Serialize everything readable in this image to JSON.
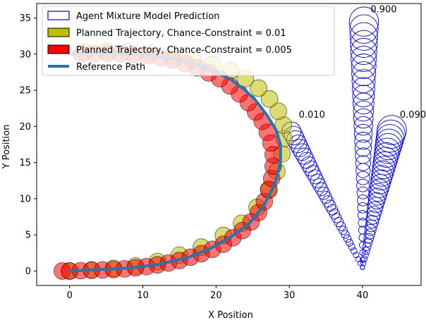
{
  "chart_data": {
    "type": "scatter",
    "title": "",
    "xlabel": "X Position",
    "ylabel": "Y Position",
    "xlim": [
      -4.5,
      48
    ],
    "ylim": [
      -2,
      37
    ],
    "xticks": [
      0,
      10,
      20,
      30,
      40
    ],
    "yticks": [
      0,
      5,
      10,
      15,
      20,
      25,
      30,
      35
    ],
    "legend": {
      "placement": "top-left",
      "entries": [
        {
          "label": "Agent Mixture Model Prediction",
          "marker": "open-rect",
          "color": "#0000ff"
        },
        {
          "label": "Planned Trajectory, Chance-Constraint = 0.01",
          "marker": "rect",
          "color": "#bfbf00"
        },
        {
          "label": "Planned Trajectory, Chance-Constraint = 0.005",
          "marker": "rect",
          "color": "#ff0000"
        },
        {
          "label": "Reference Path",
          "marker": "line",
          "color": "#1f77b4"
        }
      ]
    },
    "reference_path": {
      "name": "Reference Path",
      "color": "#1f77b4",
      "x": [
        0,
        4,
        8,
        12,
        16,
        19,
        22,
        24.5,
        26.5,
        28,
        28.8,
        28.8,
        28.2,
        27,
        25.5,
        24,
        22,
        19.5,
        17,
        14,
        11,
        8,
        5,
        2,
        0
      ],
      "y": [
        0,
        0.2,
        0.4,
        0.9,
        1.8,
        3,
        4.7,
        6.5,
        9,
        12,
        15,
        17.5,
        19.5,
        21.5,
        23.5,
        25,
        26.5,
        27.7,
        28.7,
        29.4,
        29.8,
        30,
        30.1,
        30.1,
        30
      ]
    },
    "planned_trajectories": [
      {
        "name": "Planned Trajectory, Chance-Constraint = 0.01",
        "color": "#bfbf00",
        "x": [
          0,
          3,
          6,
          9,
          12,
          15,
          18,
          21,
          23.5,
          25.6,
          27.2,
          28.3,
          29,
          29.3,
          29.2,
          28.5,
          27.3,
          25.8,
          24,
          22,
          19.5,
          16.8,
          14,
          11,
          8,
          5,
          2
        ],
        "y": [
          0,
          0.15,
          0.35,
          0.7,
          1.3,
          2.2,
          3.3,
          4.9,
          6.6,
          8.8,
          11.3,
          13.8,
          16.2,
          18.3,
          20.2,
          22.1,
          23.8,
          25.3,
          26.6,
          27.7,
          28.6,
          29.3,
          29.8,
          30.1,
          30.3,
          30.4,
          30.3
        ]
      },
      {
        "name": "Planned Trajectory, Chance-Constraint = 0.005",
        "color": "#ff0000",
        "x": [
          -1,
          0,
          1.5,
          3,
          4.5,
          6,
          7.5,
          9,
          10.5,
          12,
          13.5,
          15,
          16.5,
          18,
          19.5,
          21,
          22.3,
          23.6,
          24.8,
          25.8,
          26.6,
          27.2,
          27.6,
          27.8,
          27.8,
          27.5,
          27,
          26.3,
          25.4,
          24.4,
          23.2,
          21.9,
          20.5,
          19,
          17.4,
          15.8,
          14.1,
          12.4,
          10.6,
          8.8,
          7,
          5.2,
          3.4,
          1.6
        ],
        "y": [
          0,
          0,
          0.05,
          0.1,
          0.15,
          0.2,
          0.3,
          0.45,
          0.6,
          0.85,
          1.1,
          1.45,
          1.9,
          2.4,
          3,
          3.7,
          4.6,
          5.6,
          6.8,
          8.1,
          9.6,
          11.2,
          12.8,
          14.5,
          16.1,
          17.7,
          19.2,
          20.7,
          22,
          23.3,
          24.5,
          25.6,
          26.6,
          27.4,
          28.1,
          28.7,
          29.2,
          29.5,
          29.8,
          30,
          30.1,
          30.1,
          30.1,
          30
        ]
      }
    ],
    "agent_predictions": [
      {
        "label": "0.010",
        "color": "#0000ff",
        "start": [
          40,
          0.5
        ],
        "end": [
          30.3,
          19.3
        ],
        "r_start": 0.3,
        "r_end": 1.3
      },
      {
        "label": "0.900",
        "color": "#0000ff",
        "start": [
          40,
          0.5
        ],
        "end": [
          40.2,
          34.5
        ],
        "r_start": 0.3,
        "r_end": 2.0
      },
      {
        "label": "0.090",
        "color": "#0000ff",
        "start": [
          40,
          0.5
        ],
        "end": [
          44,
          19.5
        ],
        "r_start": 0.3,
        "r_end": 2.0
      }
    ],
    "annotations": [
      {
        "text": "0.900",
        "x": 41.1,
        "y": 35.8
      },
      {
        "text": "0.010",
        "x": 31.3,
        "y": 21.2
      },
      {
        "text": "0.090",
        "x": 45.1,
        "y": 21.2
      }
    ],
    "grid": false
  }
}
